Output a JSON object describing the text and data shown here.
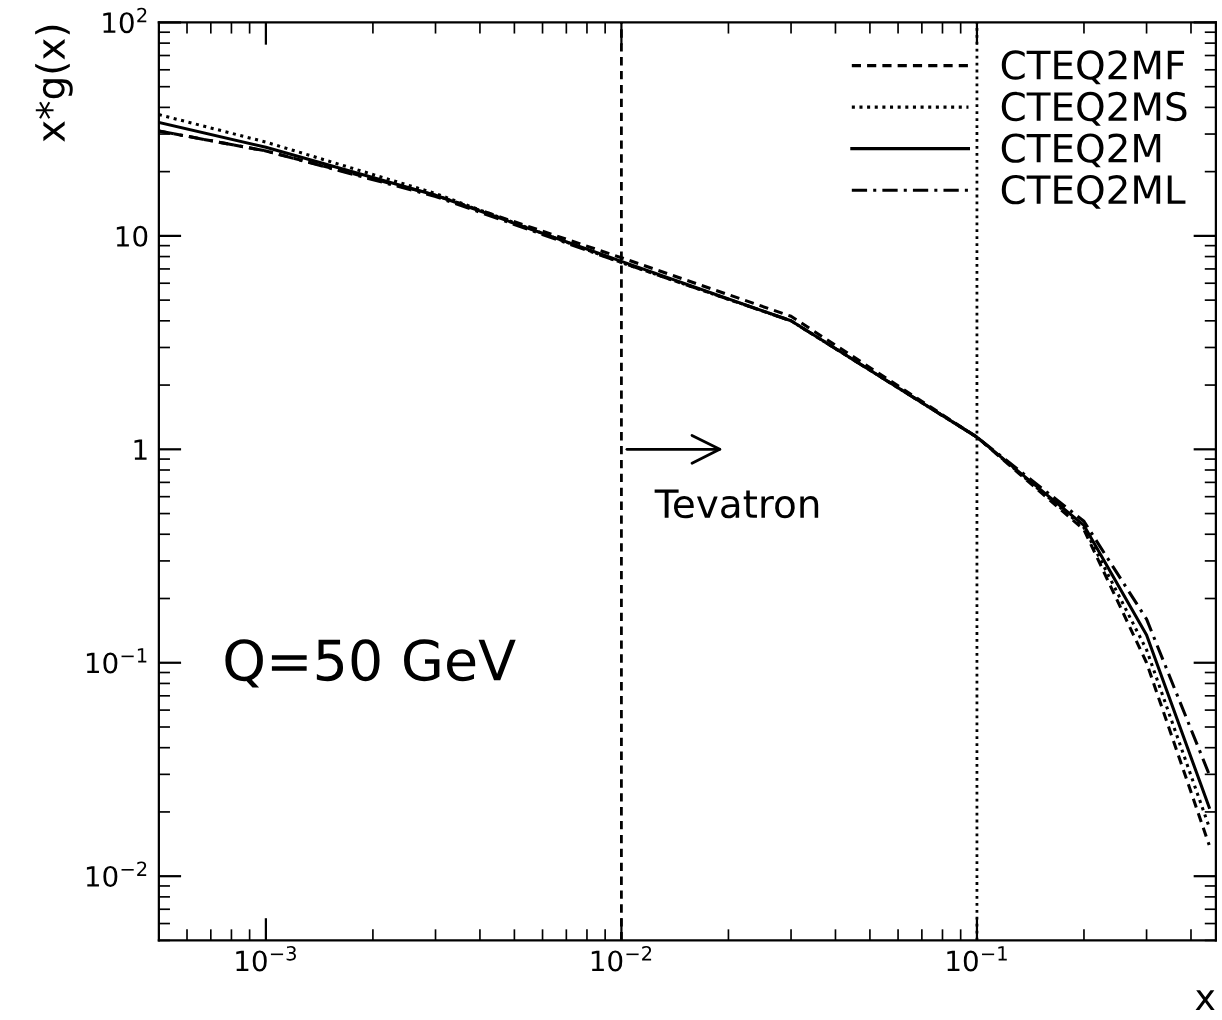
{
  "chart_data": {
    "type": "line",
    "xlabel": "x",
    "ylabel": "x*g(x)",
    "x": [
      0.0005,
      0.001,
      0.003,
      0.01,
      0.03,
      0.1,
      0.2,
      0.3,
      0.45
    ],
    "series": [
      {
        "name": "CTEQ2MF",
        "color": "#000000",
        "line_style": "dashed",
        "values": [
          31,
          25,
          15.5,
          7.9,
          4.2,
          1.14,
          0.42,
          0.1,
          0.014
        ]
      },
      {
        "name": "CTEQ2MS",
        "color": "#000000",
        "line_style": "dotted",
        "values": [
          37,
          27.5,
          15.8,
          7.5,
          4.0,
          1.14,
          0.43,
          0.115,
          0.017
        ]
      },
      {
        "name": "CTEQ2M",
        "color": "#000000",
        "line_style": "solid",
        "values": [
          34,
          26,
          15.5,
          7.6,
          4.0,
          1.14,
          0.44,
          0.135,
          0.021
        ]
      },
      {
        "name": "CTEQ2ML",
        "color": "#000000",
        "line_style": "dashdot",
        "values": [
          31,
          25,
          15.3,
          7.5,
          4.0,
          1.14,
          0.46,
          0.16,
          0.03
        ]
      }
    ],
    "log": "xy",
    "xlim": [
      0.0005,
      0.47
    ],
    "ylim": [
      0.005,
      100
    ],
    "xticks": [
      {
        "value": 0.001,
        "label": "10$^{−3}$"
      },
      {
        "value": 0.01,
        "label": "10$^{−2}$"
      },
      {
        "value": 0.1,
        "label": "10$^{−1}$"
      }
    ],
    "yticks": [
      {
        "value": 0.01,
        "label": "10$^{−2}$"
      },
      {
        "value": 0.1,
        "label": "10$^{−1}$"
      },
      1,
      10,
      {
        "value": 100,
        "label": "10$^{2}$"
      }
    ],
    "ref_lines": [
      {
        "axis": "x",
        "value": 0.01,
        "line_style": "dashed",
        "color": "#000000"
      },
      {
        "axis": "x",
        "value": 0.1,
        "line_style": "dotted",
        "color": "#000000"
      }
    ],
    "annotations": [
      {
        "text": "Tevatron",
        "x": 0.01,
        "y": 1
      },
      "Q=50 GeV"
    ],
    "legend": "top right",
    "grid": false,
    "marker": "none"
  }
}
